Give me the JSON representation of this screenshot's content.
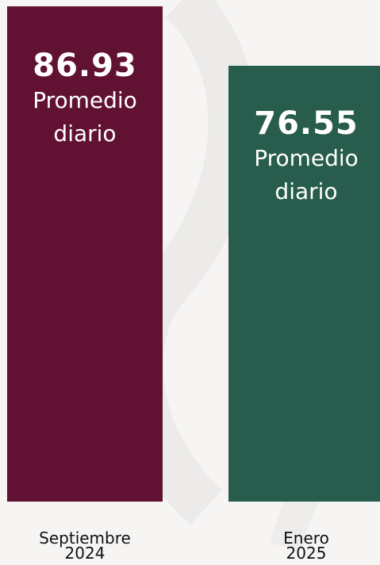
{
  "chart_data": {
    "type": "bar",
    "categories": [
      "Septiembre 2024",
      "Enero 2025"
    ],
    "category_lines": [
      [
        "Septiembre",
        "2024"
      ],
      [
        "Enero",
        "2025"
      ]
    ],
    "values": [
      86.93,
      76.55
    ],
    "value_labels": [
      "86.93",
      "76.55"
    ],
    "bar_caption": "Promedio diario",
    "colors": [
      "#611232",
      "#285c4d"
    ],
    "xlabel": "",
    "ylabel": "",
    "ylim": [
      0,
      86.93
    ],
    "grid": false,
    "legend": "none"
  },
  "colors": {
    "background": "#f6f5f4",
    "text": "#111111",
    "bar_text": "#ffffff"
  }
}
